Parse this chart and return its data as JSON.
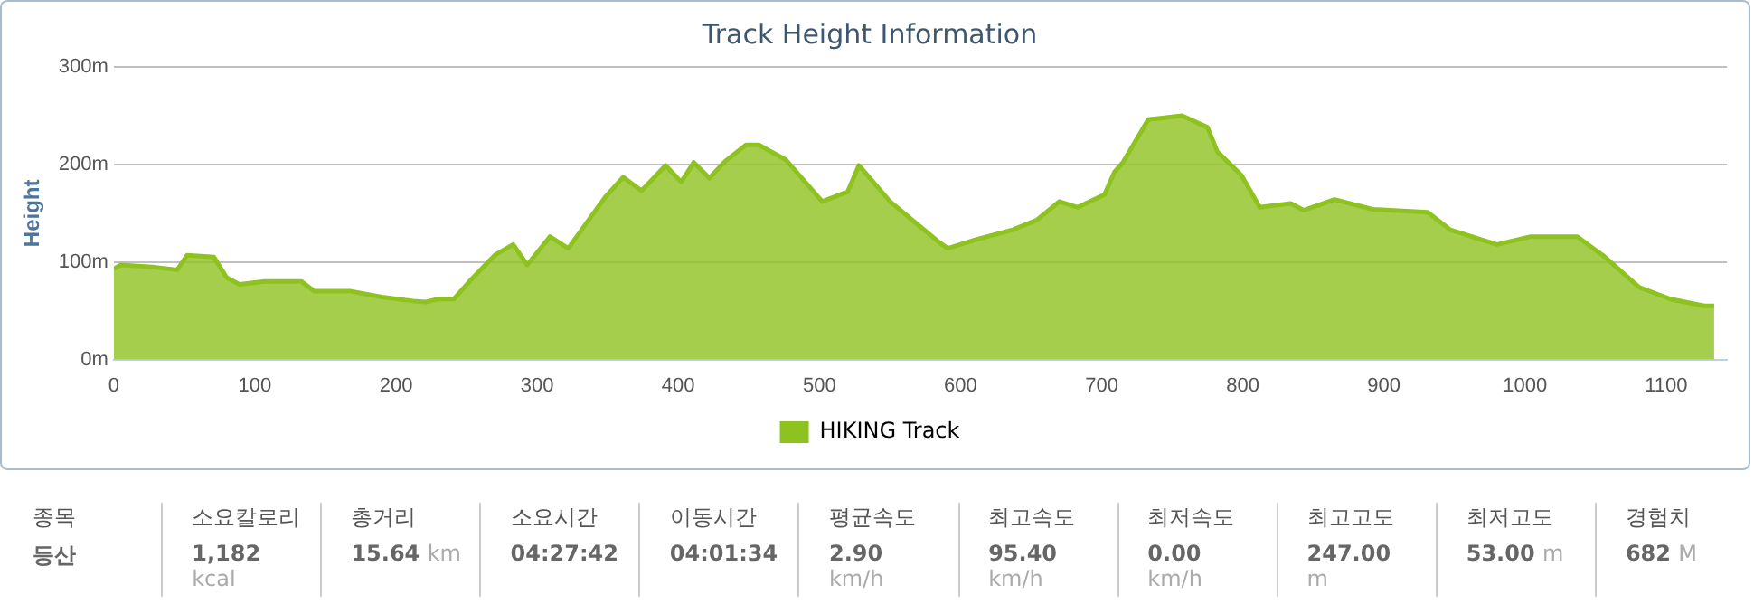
{
  "chart_data": [
    {
      "type": "area",
      "title": "Track Height Information",
      "ylabel": "Height",
      "legend": "bottom",
      "grid": "y",
      "xlim": [
        0,
        1143
      ],
      "xticks": [
        0,
        100,
        200,
        300,
        400,
        500,
        600,
        700,
        800,
        900,
        1000,
        1100
      ],
      "ylim": [
        0,
        300
      ],
      "yticks": [
        {
          "value": 0,
          "label": "0m"
        },
        {
          "value": 100,
          "label": "100m"
        },
        {
          "value": 200,
          "label": "200m"
        },
        {
          "value": 300,
          "label": "300m"
        }
      ],
      "series": [
        {
          "name": "HIKING Track",
          "color": "#8dc21f",
          "x": [
            0,
            5,
            27,
            45,
            52,
            71,
            80,
            89,
            107,
            133,
            142,
            168,
            190,
            212,
            221,
            230,
            241,
            252,
            270,
            283,
            293,
            309,
            322,
            330,
            348,
            361,
            374,
            391,
            402,
            411,
            422,
            433,
            448,
            457,
            476,
            502,
            520,
            528,
            550,
            585,
            591,
            611,
            637,
            654,
            670,
            683,
            702,
            709,
            715,
            733,
            757,
            775,
            782,
            799,
            812,
            834,
            843,
            865,
            892,
            931,
            947,
            980,
            1004,
            1037,
            1055,
            1081,
            1103,
            1127,
            1134
          ],
          "values": [
            93,
            97,
            95,
            92,
            107,
            105,
            84,
            77,
            80,
            80,
            70,
            70,
            64,
            60,
            59,
            62,
            62,
            80,
            107,
            118,
            97,
            126,
            114,
            130,
            166,
            187,
            173,
            199,
            182,
            202,
            186,
            203,
            220,
            220,
            205,
            162,
            172,
            199,
            162,
            120,
            114,
            123,
            133,
            143,
            162,
            156,
            169,
            192,
            202,
            246,
            250,
            238,
            213,
            189,
            156,
            160,
            153,
            164,
            154,
            151,
            133,
            118,
            126,
            126,
            107,
            74,
            62,
            55,
            55
          ]
        }
      ]
    },
    {
      "type": "other",
      "annotations": [
        "종목",
        "등산",
        "소요칼로리",
        "1,182 kcal",
        "총거리",
        "15.64 km",
        "소요시간",
        "04:27:42",
        "이동시간",
        "04:01:34",
        "평균속도",
        "2.90 km/h",
        "최고속도",
        "95.40 km/h",
        "최저속도",
        "0.00 km/h",
        "최고고도",
        "247.00 m",
        "최저고도",
        "53.00 m",
        "경험치",
        "682 M"
      ]
    }
  ]
}
